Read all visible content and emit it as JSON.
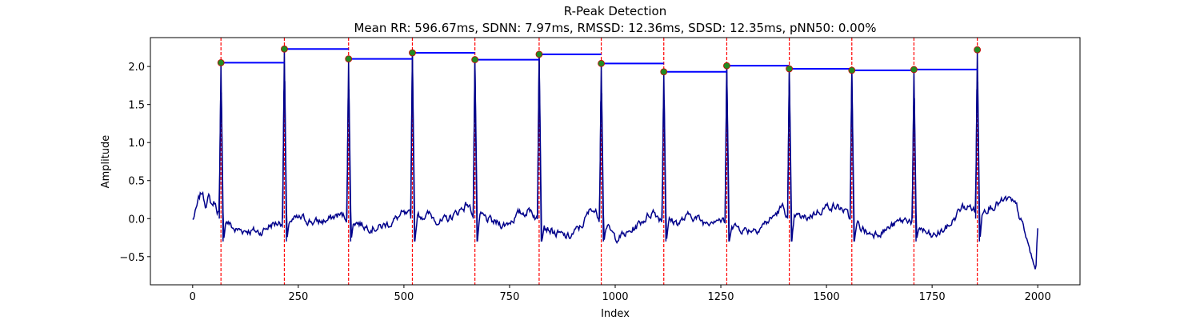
{
  "chart_data": {
    "type": "line",
    "title": "R-Peak Detection",
    "subtitle": "Mean RR: 596.67ms, SDNN: 7.97ms, RMSSD: 12.36ms, SDSD: 12.35ms, pNN50: 0.00%",
    "xlabel": "Index",
    "ylabel": "Amplitude",
    "xlim": [
      -100,
      2100
    ],
    "ylim": [
      -0.87,
      2.38
    ],
    "xticks": [
      0,
      250,
      500,
      750,
      1000,
      1250,
      1500,
      1750,
      2000
    ],
    "xtick_labels": [
      "0",
      "250",
      "500",
      "750",
      "1000",
      "1250",
      "1500",
      "1750",
      "2000"
    ],
    "yticks": [
      -0.5,
      0.0,
      0.5,
      1.0,
      1.5,
      2.0
    ],
    "ytick_labels": [
      "−0.5",
      "0.0",
      "0.5",
      "1.0",
      "1.5",
      "2.0"
    ],
    "grid": false,
    "colors": {
      "signal": "#00008b",
      "peak_marker": "#228b22",
      "peak_edge": "#cc0000",
      "peak_line": "#ff0000",
      "rr_segment": "#0000ff"
    },
    "signal_baseline": [
      [
        0,
        -0.02
      ],
      [
        8,
        0.1
      ],
      [
        15,
        0.25
      ],
      [
        22,
        0.35
      ],
      [
        30,
        0.2
      ],
      [
        38,
        0.28
      ],
      [
        45,
        0.18
      ],
      [
        52,
        0.22
      ],
      [
        58,
        0.12
      ],
      [
        63,
        0.08
      ],
      [
        100,
        -0.15
      ],
      [
        130,
        -0.15
      ],
      [
        160,
        -0.18
      ],
      [
        185,
        -0.08
      ],
      [
        205,
        -0.05
      ],
      [
        260,
        0.0
      ],
      [
        290,
        -0.05
      ],
      [
        320,
        -0.02
      ],
      [
        345,
        0.05
      ],
      [
        360,
        0.03
      ],
      [
        410,
        -0.1
      ],
      [
        440,
        -0.12
      ],
      [
        470,
        -0.05
      ],
      [
        495,
        0.05
      ],
      [
        510,
        0.03
      ],
      [
        560,
        0.05
      ],
      [
        590,
        -0.05
      ],
      [
        620,
        0.05
      ],
      [
        650,
        0.2
      ],
      [
        660,
        0.1
      ],
      [
        710,
        -0.05
      ],
      [
        740,
        -0.08
      ],
      [
        770,
        0.05
      ],
      [
        800,
        0.12
      ],
      [
        815,
        0.0
      ],
      [
        860,
        -0.2
      ],
      [
        890,
        -0.25
      ],
      [
        920,
        -0.1
      ],
      [
        945,
        0.15
      ],
      [
        958,
        0.05
      ],
      [
        1000,
        -0.25
      ],
      [
        1030,
        -0.2
      ],
      [
        1060,
        -0.05
      ],
      [
        1090,
        0.1
      ],
      [
        1108,
        0.0
      ],
      [
        1150,
        -0.05
      ],
      [
        1180,
        0.05
      ],
      [
        1210,
        -0.05
      ],
      [
        1240,
        0.02
      ],
      [
        1258,
        -0.05
      ],
      [
        1310,
        -0.15
      ],
      [
        1340,
        -0.12
      ],
      [
        1370,
        0.0
      ],
      [
        1395,
        0.15
      ],
      [
        1408,
        0.05
      ],
      [
        1450,
        0.0
      ],
      [
        1480,
        0.1
      ],
      [
        1510,
        0.18
      ],
      [
        1540,
        0.12
      ],
      [
        1555,
        0.0
      ],
      [
        1600,
        -0.2
      ],
      [
        1640,
        -0.15
      ],
      [
        1670,
        -0.05
      ],
      [
        1695,
        0.0
      ],
      [
        1700,
        -0.03
      ],
      [
        1750,
        -0.25
      ],
      [
        1790,
        -0.1
      ],
      [
        1820,
        0.15
      ],
      [
        1845,
        0.15
      ],
      [
        1850,
        0.1
      ],
      [
        1880,
        0.15
      ],
      [
        1910,
        0.2
      ],
      [
        1930,
        0.25
      ],
      [
        1950,
        0.15
      ],
      [
        1970,
        -0.2
      ],
      [
        1985,
        -0.5
      ],
      [
        1995,
        -0.7
      ],
      [
        2000,
        -0.12
      ]
    ],
    "r_peaks": [
      {
        "x": 67,
        "y": 2.05
      },
      {
        "x": 217,
        "y": 2.23
      },
      {
        "x": 369,
        "y": 2.1
      },
      {
        "x": 520,
        "y": 2.18
      },
      {
        "x": 668,
        "y": 2.09
      },
      {
        "x": 820,
        "y": 2.16
      },
      {
        "x": 967,
        "y": 2.04
      },
      {
        "x": 1115,
        "y": 1.93
      },
      {
        "x": 1264,
        "y": 2.01
      },
      {
        "x": 1412,
        "y": 1.97
      },
      {
        "x": 1560,
        "y": 1.95
      },
      {
        "x": 1707,
        "y": 1.96
      },
      {
        "x": 1857,
        "y": 2.22
      }
    ]
  }
}
